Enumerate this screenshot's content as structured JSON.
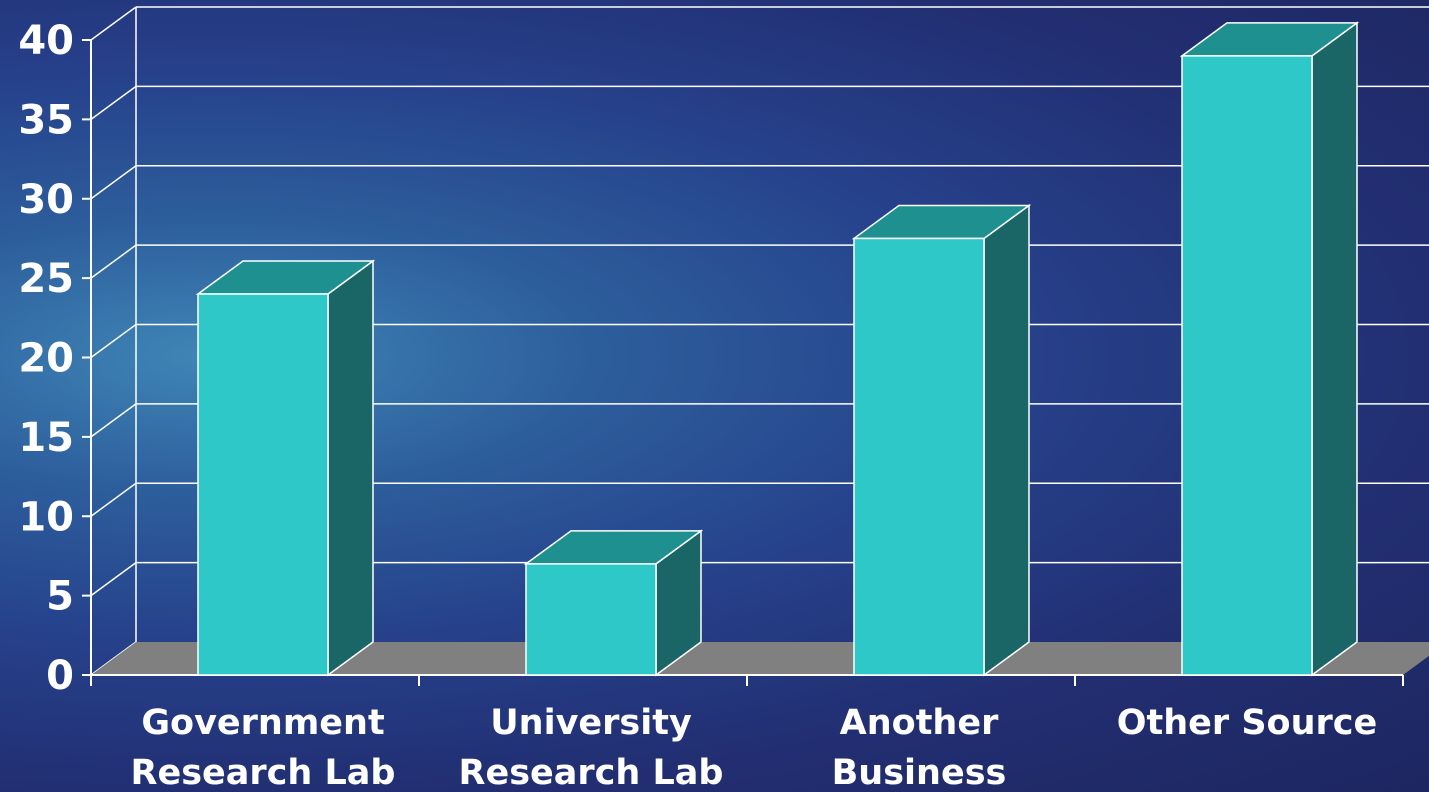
{
  "chart_data": {
    "type": "bar",
    "categories": [
      [
        "Government",
        "Research Lab"
      ],
      [
        "University",
        "Research Lab"
      ],
      [
        "Another",
        "Business"
      ],
      [
        "Other Source"
      ]
    ],
    "values": [
      24,
      7,
      27.5,
      39
    ],
    "ylim": [
      0,
      40
    ],
    "yticks": [
      0,
      5,
      10,
      15,
      20,
      25,
      30,
      35,
      40
    ],
    "grid": true,
    "style": "3d-column",
    "colors": {
      "bar_front": "#2ec8c8",
      "bar_top": "#1e9090",
      "bar_side": "#1a6565",
      "floor": "#808080",
      "gridline": "#ffffff",
      "text": "#ffffff"
    }
  }
}
